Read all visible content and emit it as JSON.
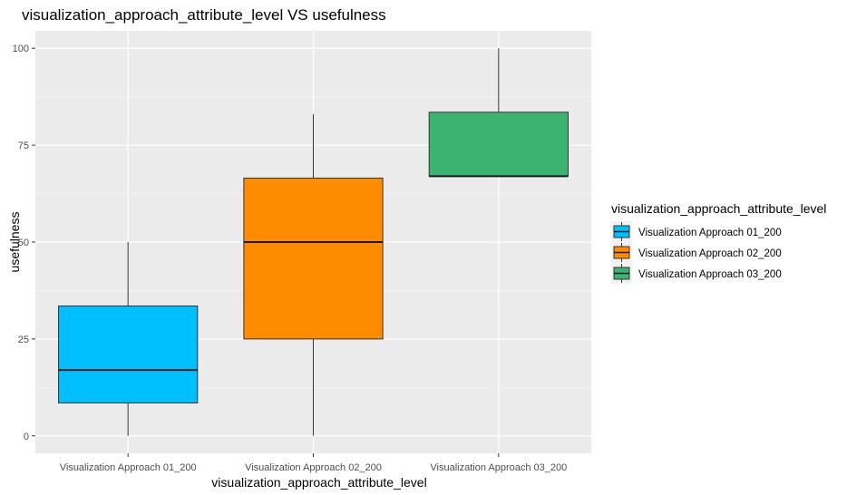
{
  "chart_data": {
    "type": "box",
    "title": "visualization_approach_attribute_level VS usefulness",
    "xlabel": "visualization_approach_attribute_level",
    "ylabel": "usefulness",
    "ylim": [
      -4.5,
      104.5
    ],
    "yticks": [
      0,
      25,
      50,
      75,
      100
    ],
    "grid": true,
    "legend_position": "right",
    "legend_title": "visualization_approach_attribute_level",
    "categories": [
      "Visualization Approach 01_200",
      "Visualization Approach 02_200",
      "Visualization Approach 03_200"
    ],
    "boxes": [
      {
        "name": "Visualization Approach 01_200",
        "min": 0,
        "q1": 8.5,
        "median": 17,
        "q3": 33.5,
        "max": 50,
        "color": "#00BFFF"
      },
      {
        "name": "Visualization Approach 02_200",
        "min": 0,
        "q1": 25,
        "median": 50,
        "q3": 66.5,
        "max": 83,
        "color": "#FF8C00"
      },
      {
        "name": "Visualization Approach 03_200",
        "min": 67,
        "q1": 67,
        "median": 67,
        "q3": 83.5,
        "max": 100,
        "color": "#3CB371"
      }
    ]
  }
}
